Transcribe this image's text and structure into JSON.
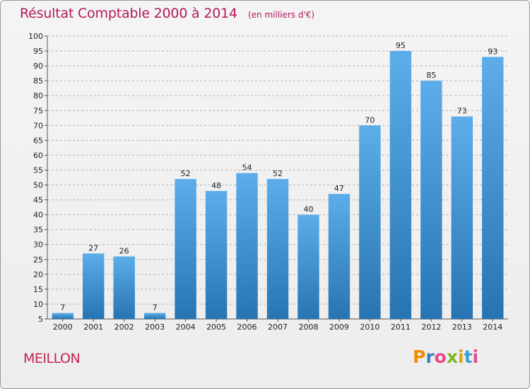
{
  "header": {
    "title": "Résultat Comptable 2000 à 2014",
    "subtitle": "(en milliers d'€)"
  },
  "footer": {
    "commune": "MEILLON",
    "brand": "Proxiti"
  },
  "colors": {
    "title": "#b3195f",
    "bar_top": "#5dadeb",
    "bar_bottom": "#2774b2",
    "grid": "#b4b4b4",
    "brand_letters": [
      "#f28c00",
      "#3a7fc1",
      "#e64a8a",
      "#7ab829",
      "#e8a20c",
      "#3a9fd6",
      "#e64a8a"
    ]
  },
  "chart_data": {
    "type": "bar",
    "categories": [
      "2000",
      "2001",
      "2002",
      "2003",
      "2004",
      "2005",
      "2006",
      "2007",
      "2008",
      "2009",
      "2010",
      "2011",
      "2012",
      "2013",
      "2014"
    ],
    "values": [
      7,
      27,
      26,
      7,
      52,
      48,
      54,
      52,
      40,
      47,
      70,
      95,
      85,
      73,
      93
    ],
    "title": "Résultat Comptable 2000 à 2014",
    "subtitle": "(en milliers d'€)",
    "xlabel": "",
    "ylabel": "",
    "ylim": [
      5,
      100
    ],
    "yticks": [
      5,
      10,
      15,
      20,
      25,
      30,
      35,
      40,
      45,
      50,
      55,
      60,
      65,
      70,
      75,
      80,
      85,
      90,
      95,
      100
    ],
    "grid": true,
    "legend": "none"
  }
}
